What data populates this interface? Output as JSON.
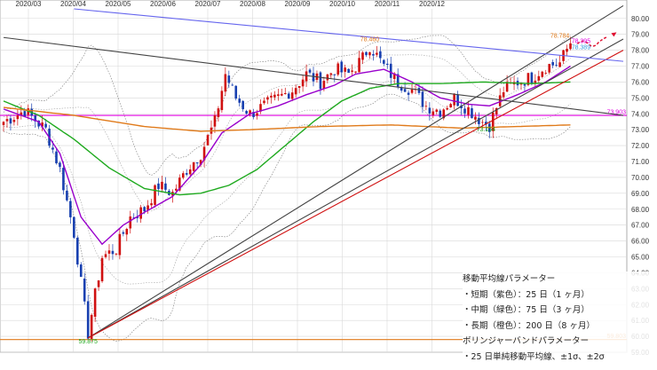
{
  "chart_data": {
    "type": "candlestick",
    "x_labels": [
      "2020/03",
      "2020/04",
      "2020/05",
      "2020/06",
      "2020/07",
      "2020/08",
      "2020/09",
      "2020/10",
      "2020/11",
      "2020/12"
    ],
    "y_ticks": [
      59.0,
      60.0,
      61.0,
      62.0,
      63.0,
      64.0,
      65.0,
      66.0,
      67.0,
      68.0,
      69.0,
      70.0,
      71.0,
      72.0,
      73.0,
      74.0,
      75.0,
      76.0,
      77.0,
      78.0,
      79.0,
      80.0
    ],
    "ylim": [
      59.0,
      80.6
    ],
    "grid": true,
    "price_anchors": [
      {
        "i": 0,
        "v": 73.5
      },
      {
        "i": 6,
        "v": 74.2
      },
      {
        "i": 12,
        "v": 73.0
      },
      {
        "i": 16,
        "v": 70.5
      },
      {
        "i": 20,
        "v": 66.5
      },
      {
        "i": 24,
        "v": 60.2
      },
      {
        "i": 28,
        "v": 65.0
      },
      {
        "i": 32,
        "v": 65.5
      },
      {
        "i": 36,
        "v": 67.5
      },
      {
        "i": 40,
        "v": 68.0
      },
      {
        "i": 44,
        "v": 69.5
      },
      {
        "i": 48,
        "v": 69.0
      },
      {
        "i": 52,
        "v": 70.5
      },
      {
        "i": 56,
        "v": 71.5
      },
      {
        "i": 60,
        "v": 73.5
      },
      {
        "i": 63,
        "v": 76.5
      },
      {
        "i": 66,
        "v": 75.0
      },
      {
        "i": 70,
        "v": 74.0
      },
      {
        "i": 74,
        "v": 74.5
      },
      {
        "i": 78,
        "v": 75.0
      },
      {
        "i": 82,
        "v": 75.5
      },
      {
        "i": 86,
        "v": 76.5
      },
      {
        "i": 90,
        "v": 76.0
      },
      {
        "i": 94,
        "v": 76.8
      },
      {
        "i": 98,
        "v": 76.5
      },
      {
        "i": 102,
        "v": 77.5
      },
      {
        "i": 104,
        "v": 78.3
      },
      {
        "i": 108,
        "v": 77.0
      },
      {
        "i": 112,
        "v": 76.0
      },
      {
        "i": 116,
        "v": 75.5
      },
      {
        "i": 120,
        "v": 74.5
      },
      {
        "i": 124,
        "v": 74.2
      },
      {
        "i": 128,
        "v": 75.0
      },
      {
        "i": 132,
        "v": 74.3
      },
      {
        "i": 136,
        "v": 73.5
      },
      {
        "i": 138,
        "v": 73.3
      },
      {
        "i": 142,
        "v": 75.5
      },
      {
        "i": 146,
        "v": 76.0
      },
      {
        "i": 150,
        "v": 76.3
      },
      {
        "i": 154,
        "v": 77.0
      },
      {
        "i": 158,
        "v": 77.2
      },
      {
        "i": 161,
        "v": 78.5
      }
    ],
    "series": [
      {
        "name": "短期（紫色）：25日（1ヶ月）",
        "color": "#9900cc",
        "values": [
          {
            "i": 0,
            "v": 74.3
          },
          {
            "i": 10,
            "v": 73.5
          },
          {
            "i": 16,
            "v": 71.5
          },
          {
            "i": 22,
            "v": 67.5
          },
          {
            "i": 28,
            "v": 65.8
          },
          {
            "i": 34,
            "v": 67.0
          },
          {
            "i": 40,
            "v": 67.8
          },
          {
            "i": 48,
            "v": 68.8
          },
          {
            "i": 56,
            "v": 70.8
          },
          {
            "i": 62,
            "v": 72.8
          },
          {
            "i": 70,
            "v": 74.0
          },
          {
            "i": 78,
            "v": 74.5
          },
          {
            "i": 86,
            "v": 75.2
          },
          {
            "i": 94,
            "v": 75.8
          },
          {
            "i": 100,
            "v": 76.5
          },
          {
            "i": 108,
            "v": 76.8
          },
          {
            "i": 116,
            "v": 76.0
          },
          {
            "i": 124,
            "v": 75.0
          },
          {
            "i": 132,
            "v": 74.6
          },
          {
            "i": 138,
            "v": 74.5
          },
          {
            "i": 146,
            "v": 75.2
          },
          {
            "i": 154,
            "v": 76.0
          },
          {
            "i": 161,
            "v": 77.0
          }
        ]
      },
      {
        "name": "中期（緑色）：75日（3ヶ月）",
        "color": "#1faa1f",
        "values": [
          {
            "i": 0,
            "v": 74.8
          },
          {
            "i": 10,
            "v": 73.9
          },
          {
            "i": 20,
            "v": 72.4
          },
          {
            "i": 30,
            "v": 70.6
          },
          {
            "i": 40,
            "v": 69.3
          },
          {
            "i": 50,
            "v": 68.9
          },
          {
            "i": 56,
            "v": 69.0
          },
          {
            "i": 64,
            "v": 69.5
          },
          {
            "i": 72,
            "v": 70.5
          },
          {
            "i": 80,
            "v": 72.0
          },
          {
            "i": 88,
            "v": 73.5
          },
          {
            "i": 96,
            "v": 74.8
          },
          {
            "i": 104,
            "v": 75.6
          },
          {
            "i": 112,
            "v": 75.9
          },
          {
            "i": 124,
            "v": 75.9
          },
          {
            "i": 136,
            "v": 76.0
          },
          {
            "i": 150,
            "v": 75.9
          },
          {
            "i": 161,
            "v": 76.0
          }
        ]
      },
      {
        "name": "長期（橙色）：200日（8ヶ月）",
        "color": "#e07a1a",
        "values": [
          {
            "i": 0,
            "v": 74.4
          },
          {
            "i": 20,
            "v": 73.9
          },
          {
            "i": 40,
            "v": 73.2
          },
          {
            "i": 56,
            "v": 72.9
          },
          {
            "i": 70,
            "v": 73.0
          },
          {
            "i": 90,
            "v": 73.2
          },
          {
            "i": 110,
            "v": 73.3
          },
          {
            "i": 130,
            "v": 73.1
          },
          {
            "i": 146,
            "v": 73.2
          },
          {
            "i": 161,
            "v": 73.3
          }
        ]
      }
    ],
    "bollinger": {
      "period": 25,
      "sigma1": 0.85,
      "sigma2": 1.7
    },
    "horizontal_lines": [
      {
        "label": "73.903",
        "value": 73.9,
        "color": "#e000e0"
      },
      {
        "label": "59.803",
        "value": 59.8,
        "color": "#e07a1a"
      }
    ],
    "trendlines": [
      {
        "color": "#444444",
        "points": [
          {
            "i": 0,
            "v": 78.8
          },
          {
            "i": 176,
            "v": 73.9
          }
        ]
      },
      {
        "color": "#444444",
        "points": [
          {
            "i": 24,
            "v": 59.9
          },
          {
            "i": 176,
            "v": 80.8
          }
        ]
      },
      {
        "color": "#444444",
        "points": [
          {
            "i": 24,
            "v": 59.9
          },
          {
            "i": 176,
            "v": 78.7
          }
        ]
      },
      {
        "color": "#d01010",
        "points": [
          {
            "i": 24,
            "v": 59.9
          },
          {
            "i": 176,
            "v": 78.0
          }
        ]
      },
      {
        "color": "#6666ee",
        "points": [
          {
            "i": 20,
            "v": 80.6
          },
          {
            "i": 176,
            "v": 77.3
          }
        ]
      }
    ],
    "annotations": [
      {
        "text": "78.460",
        "i": 104,
        "v": 78.55,
        "color": "#e07a1a"
      },
      {
        "text": "78.784",
        "i": 158,
        "v": 78.8,
        "color": "#e07a1a"
      },
      {
        "text": "78.395",
        "i": 164,
        "v": 78.45,
        "color": "#e000e0"
      },
      {
        "text": "78.389",
        "i": 164,
        "v": 78.05,
        "color": "#3399dd"
      },
      {
        "text": "73.154",
        "i": 137,
        "v": 72.9,
        "color": "#1faa1f"
      },
      {
        "text": "59.875",
        "i": 24,
        "v": 59.55,
        "color": "#1faa1f"
      }
    ]
  },
  "legend": {
    "title": "移動平均線パラメーター",
    "items": [
      "・短期（紫色）：25 日（1 ヶ月）",
      "・中期（緑色）：75 日（3 ヶ月）",
      "・長期（橙色）：200 日（8 ヶ月）"
    ],
    "bb_title": "ボリンジャーバンドパラメーター",
    "bb_item": "・25 日単純移動平均線、±1σ、±2σ"
  },
  "colors": {
    "up": "#d01010",
    "down": "#1840b0",
    "grid": "#d8d8d8",
    "forecast": "#e01030"
  }
}
